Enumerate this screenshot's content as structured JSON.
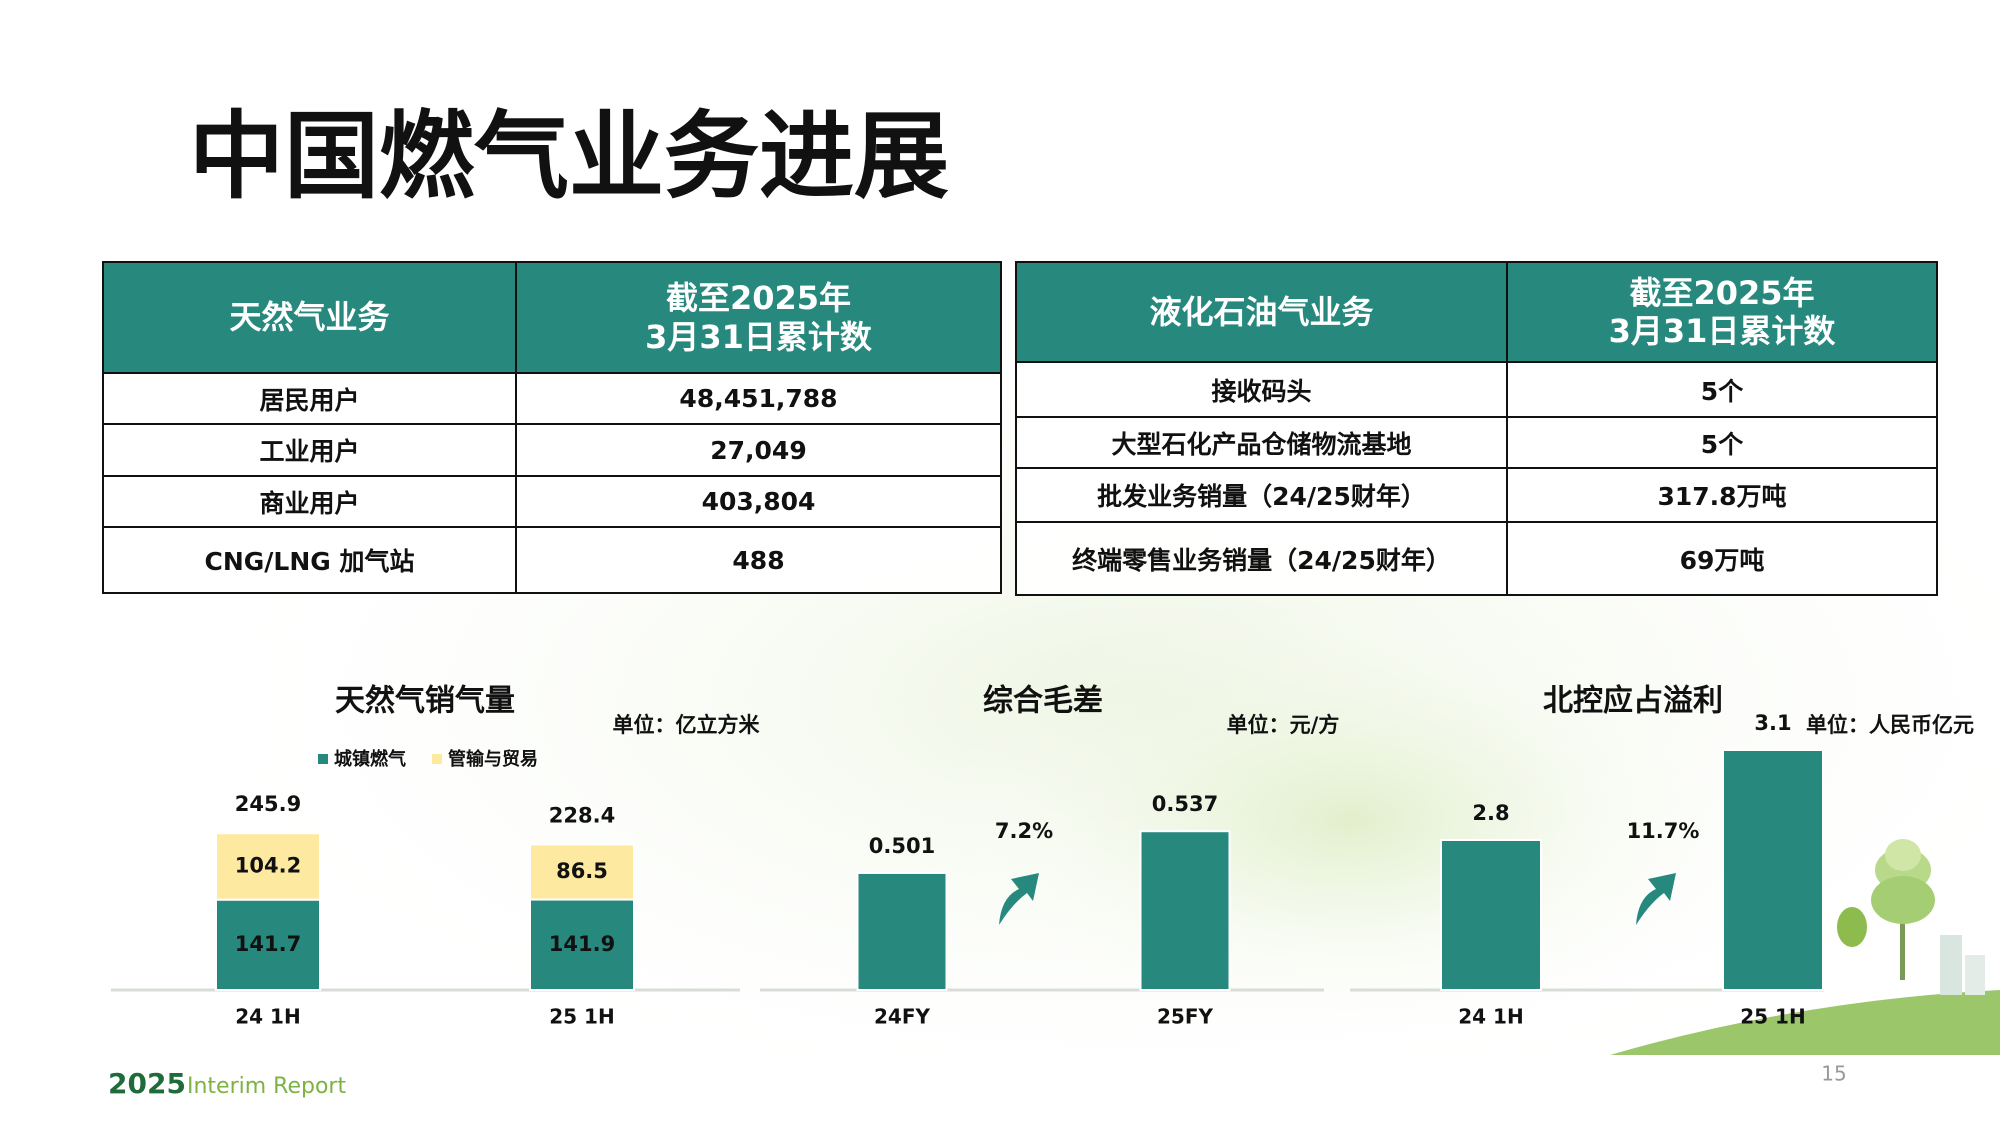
{
  "title": "中国燃气业务进展",
  "tables": [
    {
      "headers": [
        "天然气业务",
        "截至2025年\n3月31日累计数"
      ],
      "rows": [
        [
          "居民用户",
          "48,451,788"
        ],
        [
          "工业用户",
          "27,049"
        ],
        [
          "商业用户",
          "403,804"
        ],
        [
          "CNG/LNG 加气站",
          "488"
        ]
      ]
    },
    {
      "headers": [
        "液化石油气业务",
        "截至2025年\n3月31日累计数"
      ],
      "rows": [
        [
          "接收码头",
          "5个"
        ],
        [
          "大型石化产品仓储物流基地",
          "5个"
        ],
        [
          "批发业务销量（24/25财年）",
          "317.8万吨"
        ],
        [
          "终端零售业务销量（24/25财年）",
          "69万吨"
        ]
      ]
    }
  ],
  "chart_data": [
    {
      "type": "stacked_bar",
      "title": "天然气销气量",
      "unit": "单位：亿立方米",
      "categories": [
        "24 1H",
        "25 1H"
      ],
      "series": [
        {
          "name": "城镇燃气",
          "color": "#27897d",
          "values": [
            141.7,
            141.9
          ]
        },
        {
          "name": "管输与贸易",
          "color": "#fde9a0",
          "values": [
            104.2,
            86.5
          ]
        }
      ],
      "totals": [
        245.9,
        228.4
      ],
      "ylim": [
        0,
        400
      ],
      "legend": true
    },
    {
      "type": "bar",
      "title": "综合毛差",
      "unit": "单位：元/方",
      "categories": [
        "24FY",
        "25FY"
      ],
      "values": [
        0.501,
        0.537
      ],
      "color": "#27897d",
      "annotation": "7.2%",
      "ylim": [
        0.4,
        0.62
      ]
    },
    {
      "type": "bar",
      "title": "北控应占溢利",
      "unit": "单位：人民币亿元",
      "categories": [
        "24 1H",
        "25 1H"
      ],
      "values": [
        2.8,
        3.1
      ],
      "color": "#27897d",
      "annotation": "11.7%",
      "ylim": [
        2.3,
        3.15
      ]
    }
  ],
  "footer": {
    "year": "2025",
    "report": "Interim Report",
    "page": "15"
  }
}
